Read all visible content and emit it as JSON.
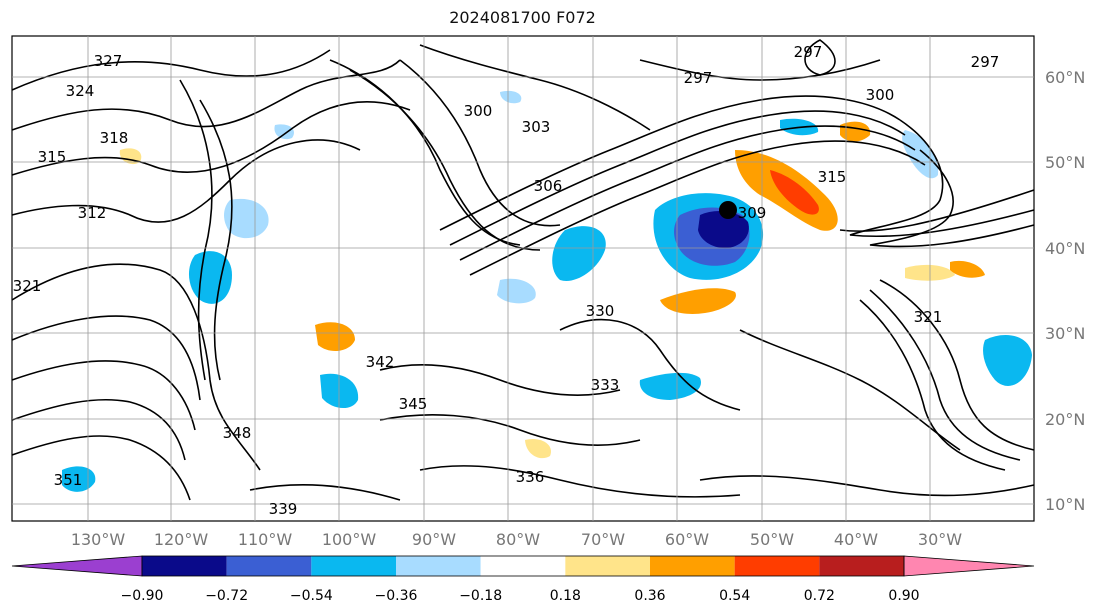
{
  "title": "2024081700 F072",
  "lon_labels": [
    "130°W",
    "120°W",
    "110°W",
    "100°W",
    "90°W",
    "80°W",
    "70°W",
    "60°W",
    "50°W",
    "40°W",
    "30°W"
  ],
  "lat_labels": [
    "60°N",
    "50°N",
    "40°N",
    "30°N",
    "20°N",
    "10°N"
  ],
  "contour_labels": [
    "327",
    "324",
    "318",
    "315",
    "312",
    "321",
    "297",
    "297",
    "297",
    "300",
    "303",
    "306",
    "309",
    "342",
    "345",
    "348",
    "351",
    "339",
    "336",
    "333",
    "330",
    "300",
    "315",
    "321"
  ],
  "colorbar": {
    "ticks": [
      "−0.90",
      "−0.72",
      "−0.54",
      "−0.36",
      "−0.18",
      "0.18",
      "0.36",
      "0.54",
      "0.72",
      "0.90"
    ],
    "colors": [
      "#9b3fd0",
      "#0a0a8a",
      "#3b5fd3",
      "#0ab8f0",
      "#a8dcff",
      "#ffffff",
      "#ffe48a",
      "#ff9f00",
      "#ff3d00",
      "#b81e1e",
      "#ff86b0"
    ]
  },
  "colors": {
    "frame": "#000000",
    "grid": "#9a9a9a",
    "text": "#111111"
  }
}
